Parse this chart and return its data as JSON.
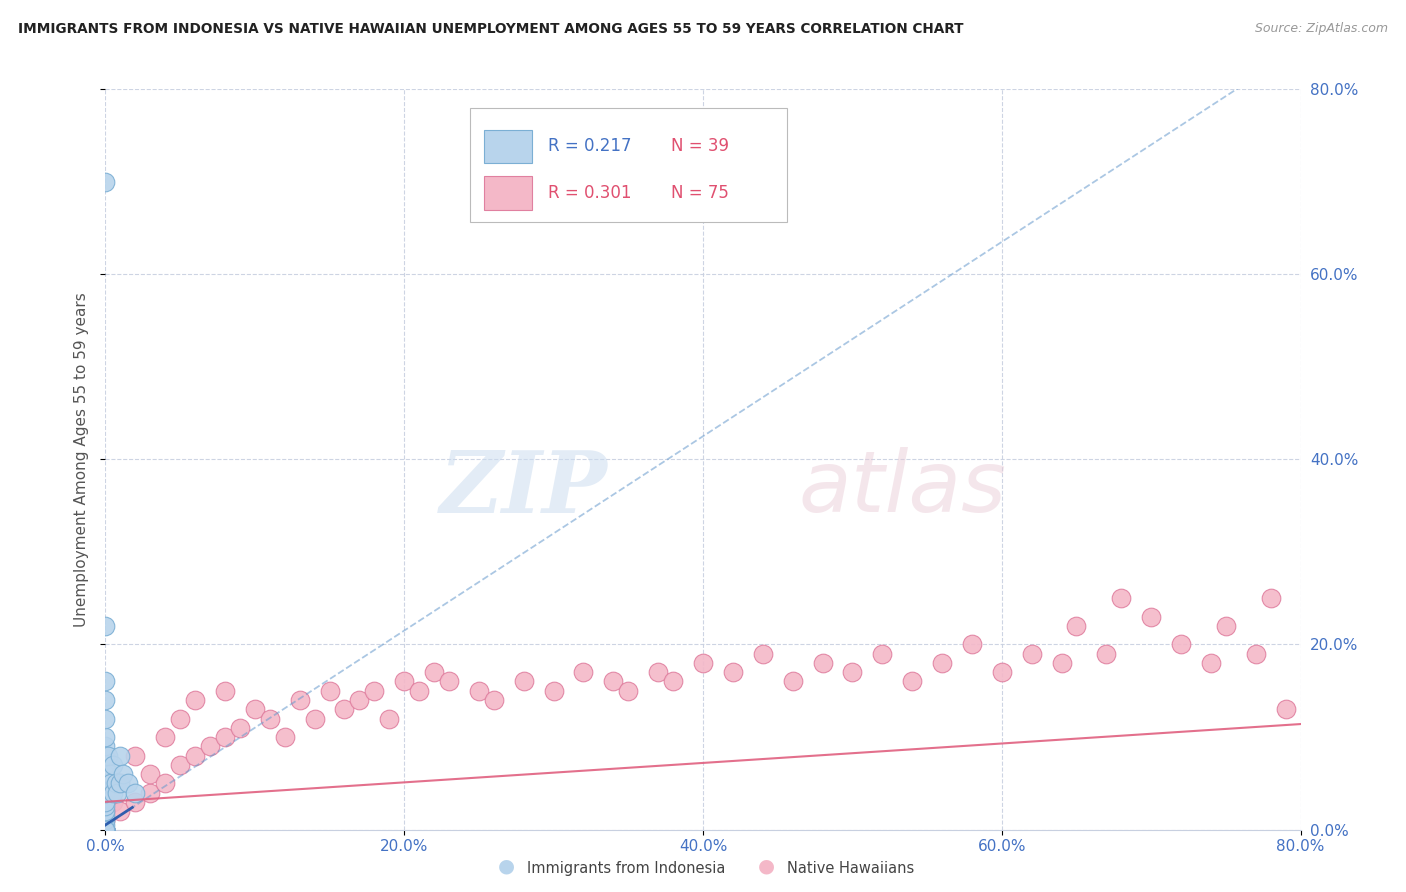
{
  "title": "IMMIGRANTS FROM INDONESIA VS NATIVE HAWAIIAN UNEMPLOYMENT AMONG AGES 55 TO 59 YEARS CORRELATION CHART",
  "source": "Source: ZipAtlas.com",
  "ylabel": "Unemployment Among Ages 55 to 59 years",
  "watermark_zip": "ZIP",
  "watermark_atlas": "atlas",
  "xlim": [
    0.0,
    0.8
  ],
  "ylim": [
    0.0,
    0.8
  ],
  "xticks": [
    0.0,
    0.2,
    0.4,
    0.6,
    0.8
  ],
  "yticks": [
    0.0,
    0.2,
    0.4,
    0.6,
    0.8
  ],
  "xticklabels": [
    "0.0%",
    "20.0%",
    "40.0%",
    "60.0%",
    "80.0%"
  ],
  "yticklabels_right": [
    "0.0%",
    "20.0%",
    "40.0%",
    "60.0%",
    "80.0%"
  ],
  "series": [
    {
      "name": "Immigrants from Indonesia",
      "R": 0.217,
      "N": 39,
      "color": "#b8d4ec",
      "edge_color": "#7bafd4",
      "trend_color": "#6699cc",
      "trend_style": "--",
      "trend_intercept": 0.005,
      "trend_slope": 1.05
    },
    {
      "name": "Native Hawaiians",
      "R": 0.301,
      "N": 75,
      "color": "#f4b8c8",
      "edge_color": "#e080a0",
      "trend_color": "#e06080",
      "trend_style": "-",
      "trend_intercept": 0.03,
      "trend_slope": 0.105
    }
  ],
  "indo_x": [
    0.0,
    0.0,
    0.0,
    0.0,
    0.0,
    0.0,
    0.0,
    0.0,
    0.0,
    0.0,
    0.0,
    0.0,
    0.0,
    0.0,
    0.0,
    0.0,
    0.0,
    0.0,
    0.0,
    0.0,
    0.0,
    0.0,
    0.0,
    0.002,
    0.003,
    0.004,
    0.005,
    0.005,
    0.007,
    0.008,
    0.01,
    0.01,
    0.012,
    0.015,
    0.02,
    0.0,
    0.0,
    0.0,
    0.0
  ],
  "indo_y": [
    0.0,
    0.0,
    0.0,
    0.0,
    0.0,
    0.0,
    0.0,
    0.0,
    0.005,
    0.01,
    0.015,
    0.02,
    0.025,
    0.03,
    0.04,
    0.05,
    0.06,
    0.07,
    0.08,
    0.09,
    0.1,
    0.12,
    0.14,
    0.08,
    0.06,
    0.05,
    0.04,
    0.07,
    0.05,
    0.04,
    0.05,
    0.08,
    0.06,
    0.05,
    0.04,
    0.22,
    0.7,
    0.16,
    0.0
  ],
  "nh_x": [
    0.0,
    0.0,
    0.0,
    0.0,
    0.0,
    0.0,
    0.005,
    0.01,
    0.01,
    0.02,
    0.02,
    0.03,
    0.03,
    0.04,
    0.04,
    0.05,
    0.05,
    0.06,
    0.06,
    0.07,
    0.08,
    0.08,
    0.09,
    0.1,
    0.11,
    0.12,
    0.13,
    0.14,
    0.15,
    0.16,
    0.17,
    0.18,
    0.19,
    0.2,
    0.21,
    0.22,
    0.23,
    0.25,
    0.26,
    0.28,
    0.3,
    0.32,
    0.34,
    0.35,
    0.37,
    0.38,
    0.4,
    0.42,
    0.44,
    0.46,
    0.48,
    0.5,
    0.52,
    0.54,
    0.56,
    0.58,
    0.6,
    0.62,
    0.64,
    0.65,
    0.67,
    0.68,
    0.7,
    0.72,
    0.74,
    0.75,
    0.77,
    0.78,
    0.79,
    0.0,
    0.0,
    0.0,
    0.0,
    0.0,
    0.0
  ],
  "nh_y": [
    0.0,
    0.0,
    0.0,
    0.0,
    0.01,
    0.02,
    0.03,
    0.02,
    0.05,
    0.03,
    0.08,
    0.04,
    0.06,
    0.05,
    0.1,
    0.07,
    0.12,
    0.08,
    0.14,
    0.09,
    0.1,
    0.15,
    0.11,
    0.13,
    0.12,
    0.1,
    0.14,
    0.12,
    0.15,
    0.13,
    0.14,
    0.15,
    0.12,
    0.16,
    0.15,
    0.17,
    0.16,
    0.15,
    0.14,
    0.16,
    0.15,
    0.17,
    0.16,
    0.15,
    0.17,
    0.16,
    0.18,
    0.17,
    0.19,
    0.16,
    0.18,
    0.17,
    0.19,
    0.16,
    0.18,
    0.2,
    0.17,
    0.19,
    0.18,
    0.22,
    0.19,
    0.25,
    0.23,
    0.2,
    0.18,
    0.22,
    0.19,
    0.25,
    0.13,
    0.0,
    0.01,
    0.02,
    0.03,
    0.04,
    0.0
  ],
  "tick_label_color": "#4472c4",
  "grid_color": "#c8d0e0",
  "background_color": "#ffffff",
  "legend_R_color_blue": "#4472c4",
  "legend_N_color_red": "#e05070",
  "ylabel_color": "#555555",
  "title_color": "#222222"
}
